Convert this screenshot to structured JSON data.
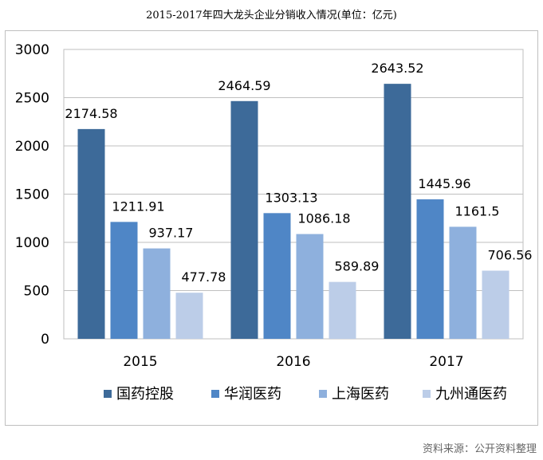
{
  "title": "2015-2017年四大龙头企业分销收入情况(单位：亿元)",
  "source": "资料来源：公开资料整理",
  "chart_data": {
    "type": "bar",
    "categories": [
      "2015",
      "2016",
      "2017"
    ],
    "series": [
      {
        "name": "国药控股",
        "values": [
          2174.58,
          2464.59,
          2643.52
        ],
        "color": "#3d6a99"
      },
      {
        "name": "华润医药",
        "values": [
          1211.91,
          1303.13,
          1445.96
        ],
        "color": "#4f86c6"
      },
      {
        "name": "上海医药",
        "values": [
          937.17,
          1086.18,
          1161.5
        ],
        "color": "#8eb0dd"
      },
      {
        "name": "九州通医药",
        "values": [
          477.78,
          589.89,
          706.56
        ],
        "color": "#bccde8"
      }
    ],
    "value_labels": [
      [
        "2174.58",
        "2464.59",
        "2643.52"
      ],
      [
        "1211.91",
        "1303.13",
        "1445.96"
      ],
      [
        "937.17",
        "1086.18",
        "1161.5"
      ],
      [
        "477.78",
        "589.89",
        "706.56"
      ]
    ],
    "ylim": [
      0,
      3000
    ],
    "yticks": [
      "0",
      "500",
      "1000",
      "1500",
      "2000",
      "2500",
      "3000"
    ],
    "grid": true,
    "legend_position": "bottom"
  }
}
